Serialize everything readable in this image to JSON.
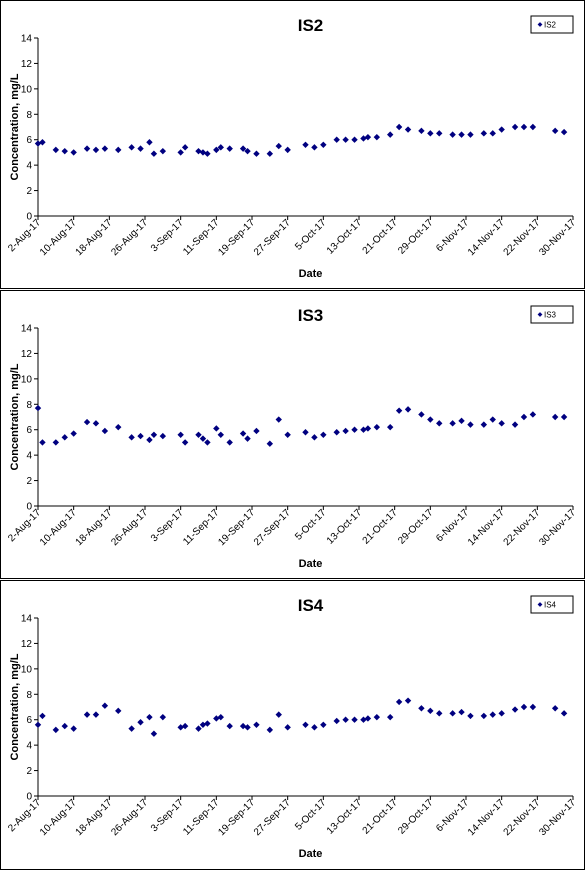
{
  "chart_data": [
    {
      "type": "scatter",
      "title": "IS2",
      "xlabel": "Date",
      "ylabel": "Concentration, mg/L",
      "ylim": [
        0,
        14
      ],
      "yticks": [
        "0",
        "2",
        "4",
        "6",
        "8",
        "10",
        "12",
        "14"
      ],
      "xticks": [
        "2-Aug-17",
        "10-Aug-17",
        "18-Aug-17",
        "26-Aug-17",
        "3-Sep-17",
        "11-Sep-17",
        "19-Sep-17",
        "27-Sep-17",
        "5-Oct-17",
        "13-Oct-17",
        "21-Oct-17",
        "29-Oct-17",
        "6-Nov-17",
        "14-Nov-17",
        "22-Nov-17",
        "30-Nov-17"
      ],
      "grid": false,
      "legend_position": "top-right",
      "series": [
        {
          "name": "IS2",
          "color": "#000080",
          "x": [
            "2-Aug-17",
            "3-Aug-17",
            "6-Aug-17",
            "8-Aug-17",
            "10-Aug-17",
            "13-Aug-17",
            "15-Aug-17",
            "17-Aug-17",
            "20-Aug-17",
            "23-Aug-17",
            "25-Aug-17",
            "27-Aug-17",
            "28-Aug-17",
            "30-Aug-17",
            "3-Sep-17",
            "4-Sep-17",
            "7-Sep-17",
            "8-Sep-17",
            "9-Sep-17",
            "11-Sep-17",
            "12-Sep-17",
            "14-Sep-17",
            "17-Sep-17",
            "18-Sep-17",
            "20-Sep-17",
            "23-Sep-17",
            "25-Sep-17",
            "27-Sep-17",
            "1-Oct-17",
            "3-Oct-17",
            "5-Oct-17",
            "8-Oct-17",
            "10-Oct-17",
            "12-Oct-17",
            "14-Oct-17",
            "15-Oct-17",
            "17-Oct-17",
            "20-Oct-17",
            "22-Oct-17",
            "24-Oct-17",
            "27-Oct-17",
            "29-Oct-17",
            "31-Oct-17",
            "3-Nov-17",
            "5-Nov-17",
            "7-Nov-17",
            "10-Nov-17",
            "12-Nov-17",
            "14-Nov-17",
            "17-Nov-17",
            "19-Nov-17",
            "21-Nov-17",
            "26-Nov-17",
            "28-Nov-17"
          ],
          "y": [
            5.7,
            5.8,
            5.2,
            5.1,
            5.0,
            5.3,
            5.2,
            5.3,
            5.2,
            5.4,
            5.3,
            5.8,
            4.9,
            5.1,
            5.0,
            5.4,
            5.1,
            5.0,
            4.9,
            5.2,
            5.4,
            5.3,
            5.3,
            5.1,
            4.9,
            4.9,
            5.5,
            5.2,
            5.6,
            5.4,
            5.6,
            6.0,
            6.0,
            6.0,
            6.1,
            6.2,
            6.2,
            6.4,
            7.0,
            6.8,
            6.7,
            6.5,
            6.5,
            6.4,
            6.4,
            6.4,
            6.5,
            6.5,
            6.8,
            7.0,
            7.0,
            7.0,
            6.7,
            6.6
          ]
        }
      ]
    },
    {
      "type": "scatter",
      "title": "IS3",
      "xlabel": "Date",
      "ylabel": "Concentration, mg/L",
      "ylim": [
        0,
        14
      ],
      "yticks": [
        "0",
        "2",
        "4",
        "6",
        "8",
        "10",
        "12",
        "14"
      ],
      "xticks": [
        "2-Aug-17",
        "10-Aug-17",
        "18-Aug-17",
        "26-Aug-17",
        "3-Sep-17",
        "11-Sep-17",
        "19-Sep-17",
        "27-Sep-17",
        "5-Oct-17",
        "13-Oct-17",
        "21-Oct-17",
        "29-Oct-17",
        "6-Nov-17",
        "14-Nov-17",
        "22-Nov-17",
        "30-Nov-17"
      ],
      "grid": false,
      "legend_position": "top-right",
      "series": [
        {
          "name": "IS3",
          "color": "#000080",
          "x": [
            "2-Aug-17",
            "3-Aug-17",
            "6-Aug-17",
            "8-Aug-17",
            "10-Aug-17",
            "13-Aug-17",
            "15-Aug-17",
            "17-Aug-17",
            "20-Aug-17",
            "23-Aug-17",
            "25-Aug-17",
            "27-Aug-17",
            "28-Aug-17",
            "30-Aug-17",
            "3-Sep-17",
            "4-Sep-17",
            "7-Sep-17",
            "8-Sep-17",
            "9-Sep-17",
            "11-Sep-17",
            "12-Sep-17",
            "14-Sep-17",
            "17-Sep-17",
            "18-Sep-17",
            "20-Sep-17",
            "23-Sep-17",
            "25-Sep-17",
            "27-Sep-17",
            "1-Oct-17",
            "3-Oct-17",
            "5-Oct-17",
            "8-Oct-17",
            "10-Oct-17",
            "12-Oct-17",
            "14-Oct-17",
            "15-Oct-17",
            "17-Oct-17",
            "20-Oct-17",
            "22-Oct-17",
            "24-Oct-17",
            "27-Oct-17",
            "29-Oct-17",
            "31-Oct-17",
            "3-Nov-17",
            "5-Nov-17",
            "7-Nov-17",
            "10-Nov-17",
            "12-Nov-17",
            "14-Nov-17",
            "17-Nov-17",
            "19-Nov-17",
            "21-Nov-17",
            "26-Nov-17",
            "28-Nov-17"
          ],
          "y": [
            7.7,
            5.0,
            5.0,
            5.4,
            5.7,
            6.6,
            6.5,
            5.9,
            6.2,
            5.4,
            5.5,
            5.2,
            5.6,
            5.5,
            5.6,
            5.0,
            5.6,
            5.3,
            5.0,
            6.1,
            5.6,
            5.0,
            5.7,
            5.3,
            5.9,
            4.9,
            6.8,
            5.6,
            5.8,
            5.4,
            5.6,
            5.8,
            5.9,
            6.0,
            6.0,
            6.1,
            6.2,
            6.2,
            7.5,
            7.6,
            7.2,
            6.8,
            6.5,
            6.5,
            6.7,
            6.4,
            6.4,
            6.8,
            6.5,
            6.4,
            7.0,
            7.2,
            7.0,
            7.0
          ]
        }
      ]
    },
    {
      "type": "scatter",
      "title": "IS4",
      "xlabel": "Date",
      "ylabel": "Concentration, mg/L",
      "ylim": [
        0,
        14
      ],
      "yticks": [
        "0",
        "2",
        "4",
        "6",
        "8",
        "10",
        "12",
        "14"
      ],
      "xticks": [
        "2-Aug-17",
        "10-Aug-17",
        "18-Aug-17",
        "26-Aug-17",
        "3-Sep-17",
        "11-Sep-17",
        "19-Sep-17",
        "27-Sep-17",
        "5-Oct-17",
        "13-Oct-17",
        "21-Oct-17",
        "29-Oct-17",
        "6-Nov-17",
        "14-Nov-17",
        "22-Nov-17",
        "30-Nov-17"
      ],
      "grid": false,
      "legend_position": "top-right",
      "series": [
        {
          "name": "IS4",
          "color": "#000080",
          "x": [
            "2-Aug-17",
            "3-Aug-17",
            "6-Aug-17",
            "8-Aug-17",
            "10-Aug-17",
            "13-Aug-17",
            "15-Aug-17",
            "17-Aug-17",
            "20-Aug-17",
            "23-Aug-17",
            "25-Aug-17",
            "27-Aug-17",
            "28-Aug-17",
            "30-Aug-17",
            "3-Sep-17",
            "4-Sep-17",
            "7-Sep-17",
            "8-Sep-17",
            "9-Sep-17",
            "11-Sep-17",
            "12-Sep-17",
            "14-Sep-17",
            "17-Sep-17",
            "18-Sep-17",
            "20-Sep-17",
            "23-Sep-17",
            "25-Sep-17",
            "27-Sep-17",
            "1-Oct-17",
            "3-Oct-17",
            "5-Oct-17",
            "8-Oct-17",
            "10-Oct-17",
            "12-Oct-17",
            "14-Oct-17",
            "15-Oct-17",
            "17-Oct-17",
            "20-Oct-17",
            "22-Oct-17",
            "24-Oct-17",
            "27-Oct-17",
            "29-Oct-17",
            "31-Oct-17",
            "3-Nov-17",
            "5-Nov-17",
            "7-Nov-17",
            "10-Nov-17",
            "12-Nov-17",
            "14-Nov-17",
            "17-Nov-17",
            "19-Nov-17",
            "21-Nov-17",
            "26-Nov-17",
            "28-Nov-17"
          ],
          "y": [
            5.6,
            6.3,
            5.2,
            5.5,
            5.3,
            6.4,
            6.4,
            7.1,
            6.7,
            5.3,
            5.8,
            6.2,
            4.9,
            6.2,
            5.4,
            5.5,
            5.3,
            5.6,
            5.7,
            6.1,
            6.2,
            5.5,
            5.5,
            5.4,
            5.6,
            5.2,
            6.4,
            5.4,
            5.6,
            5.4,
            5.6,
            5.9,
            6.0,
            6.0,
            6.0,
            6.1,
            6.2,
            6.2,
            7.4,
            7.5,
            6.9,
            6.7,
            6.5,
            6.5,
            6.6,
            6.3,
            6.3,
            6.4,
            6.5,
            6.8,
            7.0,
            7.0,
            6.9,
            6.5
          ]
        }
      ]
    }
  ]
}
